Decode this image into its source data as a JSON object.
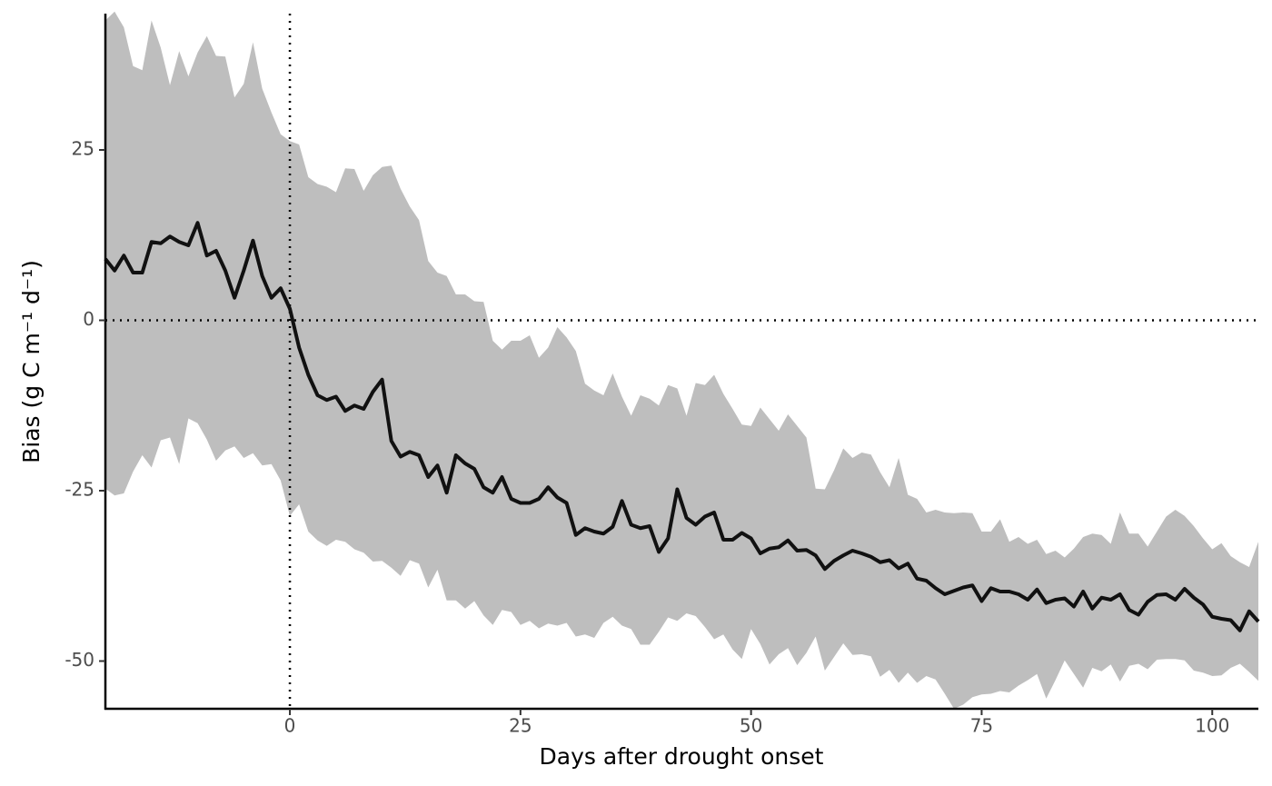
{
  "chart_data": {
    "type": "line",
    "x_label": "Days after drought onset",
    "y_label": "Bias (g C m⁻¹ d⁻¹)",
    "xlim": [
      -20,
      105
    ],
    "ylim": [
      -57,
      45
    ],
    "xticks": [
      0,
      25,
      50,
      75,
      100
    ],
    "yticks": [
      -50,
      -25,
      0,
      25
    ],
    "vline": 0,
    "hline": 0,
    "x": [
      -20,
      -19,
      -18,
      -17,
      -16,
      -15,
      -14,
      -13,
      -12,
      -11,
      -10,
      -9,
      -8,
      -7,
      -6,
      -5,
      -4,
      -3,
      -2,
      -1,
      0,
      1,
      2,
      3,
      4,
      5,
      6,
      7,
      8,
      9,
      10,
      11,
      12,
      13,
      14,
      15,
      16,
      17,
      18,
      19,
      20,
      21,
      22,
      23,
      24,
      25,
      26,
      27,
      28,
      29,
      30,
      31,
      32,
      33,
      34,
      35,
      36,
      37,
      38,
      39,
      40,
      41,
      42,
      43,
      44,
      45,
      46,
      47,
      48,
      49,
      50,
      51,
      52,
      53,
      54,
      55,
      56,
      57,
      58,
      59,
      60,
      61,
      62,
      63,
      64,
      65,
      66,
      67,
      68,
      69,
      70,
      71,
      72,
      73,
      74,
      75,
      76,
      77,
      78,
      79,
      80,
      81,
      82,
      83,
      84,
      85,
      86,
      87,
      88,
      89,
      90,
      91,
      92,
      93,
      94,
      95,
      96,
      97,
      98,
      99,
      100,
      101,
      102,
      103,
      104,
      105
    ],
    "ribbon": {
      "color": "#bebebe",
      "upper": [
        44,
        45.3,
        43,
        37.3,
        36.7,
        44,
        40,
        34.5,
        39.5,
        35.8,
        39.3,
        41.7,
        38.8,
        38.7,
        32.7,
        34.7,
        40.8,
        34,
        30.5,
        27.3,
        26.3,
        25.8,
        21,
        20,
        19.6,
        18.8,
        22.3,
        22.2,
        19,
        21.3,
        22.5,
        22.7,
        19.3,
        16.7,
        14.7,
        8.7,
        7,
        6.5,
        3.8,
        3.8,
        2.8,
        2.7,
        -3,
        -4.3,
        -3,
        -3,
        -2.2,
        -5.5,
        -4,
        -1,
        -2.5,
        -4.5,
        -9.3,
        -10.3,
        -11,
        -7.8,
        -11.2,
        -14,
        -11,
        -11.5,
        -12.5,
        -9.5,
        -10,
        -14,
        -9.2,
        -9.5,
        -8,
        -10.8,
        -13,
        -15.3,
        -15.5,
        -12.8,
        -14.5,
        -16.2,
        -13.8,
        -15.5,
        -17.2,
        -24.7,
        -24.8,
        -22,
        -18.8,
        -20.2,
        -19.4,
        -19.7,
        -22.3,
        -24.5,
        -20.2,
        -25.6,
        -26.2,
        -28.2,
        -27.8,
        -28.2,
        -28.3,
        -28.2,
        -28.3,
        -31,
        -31,
        -29.2,
        -32.5,
        -31.8,
        -32.8,
        -32.2,
        -34.3,
        -33.8,
        -34.8,
        -33.5,
        -31.8,
        -31.3,
        -31.5,
        -32.8,
        -28.2,
        -31.3,
        -31.3,
        -33.2,
        -31,
        -28.8,
        -27.8,
        -28.7,
        -30.2,
        -32,
        -33.6,
        -32.7,
        -34.6,
        -35.5,
        -36.2,
        -32.5
      ],
      "lower": [
        -24.7,
        -25.7,
        -25.4,
        -22.2,
        -19.8,
        -21.6,
        -17.6,
        -17.2,
        -21.1,
        -14.4,
        -15.1,
        -17.5,
        -20.6,
        -19.1,
        -18.5,
        -20.2,
        -19.5,
        -21.3,
        -21.1,
        -23.5,
        -28.7,
        -27,
        -31,
        -32.3,
        -33.1,
        -32.2,
        -32.5,
        -33.6,
        -34.1,
        -35.4,
        -35.3,
        -36.3,
        -37.5,
        -35.2,
        -35.7,
        -39.2,
        -36.6,
        -41.1,
        -41.1,
        -42.3,
        -41.2,
        -43.3,
        -44.7,
        -42.5,
        -42.8,
        -44.7,
        -44.1,
        -45.2,
        -44.5,
        -44.8,
        -44.4,
        -46.4,
        -46.1,
        -46.6,
        -44.4,
        -43.5,
        -44.8,
        -45.3,
        -47.6,
        -47.6,
        -45.7,
        -43.6,
        -44.1,
        -43,
        -43.4,
        -45,
        -46.8,
        -46.1,
        -48.3,
        -49.7,
        -45.3,
        -47.5,
        -50.5,
        -49,
        -48.1,
        -50.6,
        -48.8,
        -46.4,
        -51.4,
        -49.4,
        -47.4,
        -49.1,
        -49,
        -49.3,
        -52.3,
        -51.3,
        -53.2,
        -51.7,
        -53.2,
        -52.2,
        -52.7,
        -54.8,
        -57,
        -56.4,
        -55.3,
        -54.9,
        -54.8,
        -54.4,
        -54.6,
        -53.6,
        -52.8,
        -51.9,
        -55.5,
        -52.8,
        -49.9,
        -51.9,
        -53.9,
        -51,
        -51.5,
        -50.5,
        -53,
        -50.7,
        -50.4,
        -51.2,
        -49.8,
        -49.7,
        -49.7,
        -49.9,
        -51.4,
        -51.7,
        -52.2,
        -52.1,
        -51,
        -50.4,
        -51.6,
        -52.9
      ]
    },
    "series": [
      {
        "color": "#111111",
        "values": [
          9,
          7.3,
          9.5,
          7,
          7,
          11.5,
          11.3,
          12.3,
          11.5,
          11,
          14.3,
          9.5,
          10.2,
          7.3,
          3.3,
          7.3,
          11.7,
          6.5,
          3.3,
          4.7,
          1.7,
          -4,
          -8,
          -11,
          -11.7,
          -11.2,
          -13.3,
          -12.5,
          -13,
          -10.5,
          -8.7,
          -17.7,
          -20,
          -19.3,
          -19.8,
          -23,
          -21.3,
          -25.3,
          -19.8,
          -21,
          -21.8,
          -24.5,
          -25.3,
          -23,
          -26.2,
          -26.8,
          -26.8,
          -26.2,
          -24.5,
          -26,
          -26.8,
          -31.5,
          -30.5,
          -31,
          -31.3,
          -30.3,
          -26.5,
          -30,
          -30.5,
          -30.2,
          -34,
          -32,
          -24.8,
          -29,
          -30,
          -28.8,
          -28.2,
          -32.2,
          -32.2,
          -31.2,
          -32,
          -34.2,
          -33.5,
          -33.3,
          -32.3,
          -33.8,
          -33.7,
          -34.5,
          -36.5,
          -35.3,
          -34.5,
          -33.8,
          -34.2,
          -34.7,
          -35.5,
          -35.2,
          -36.4,
          -35.7,
          -37.9,
          -38.2,
          -39.3,
          -40.2,
          -39.7,
          -39.2,
          -38.9,
          -41.2,
          -39.3,
          -39.8,
          -39.8,
          -40.2,
          -41,
          -39.5,
          -41.5,
          -41,
          -40.8,
          -42,
          -39.8,
          -42.3,
          -40.7,
          -41,
          -40.2,
          -42.5,
          -43.2,
          -41.3,
          -40.3,
          -40.2,
          -41,
          -39.4,
          -40.7,
          -41.7,
          -43.5,
          -43.8,
          -44,
          -45.5,
          -42.7,
          -44.2
        ]
      }
    ]
  }
}
